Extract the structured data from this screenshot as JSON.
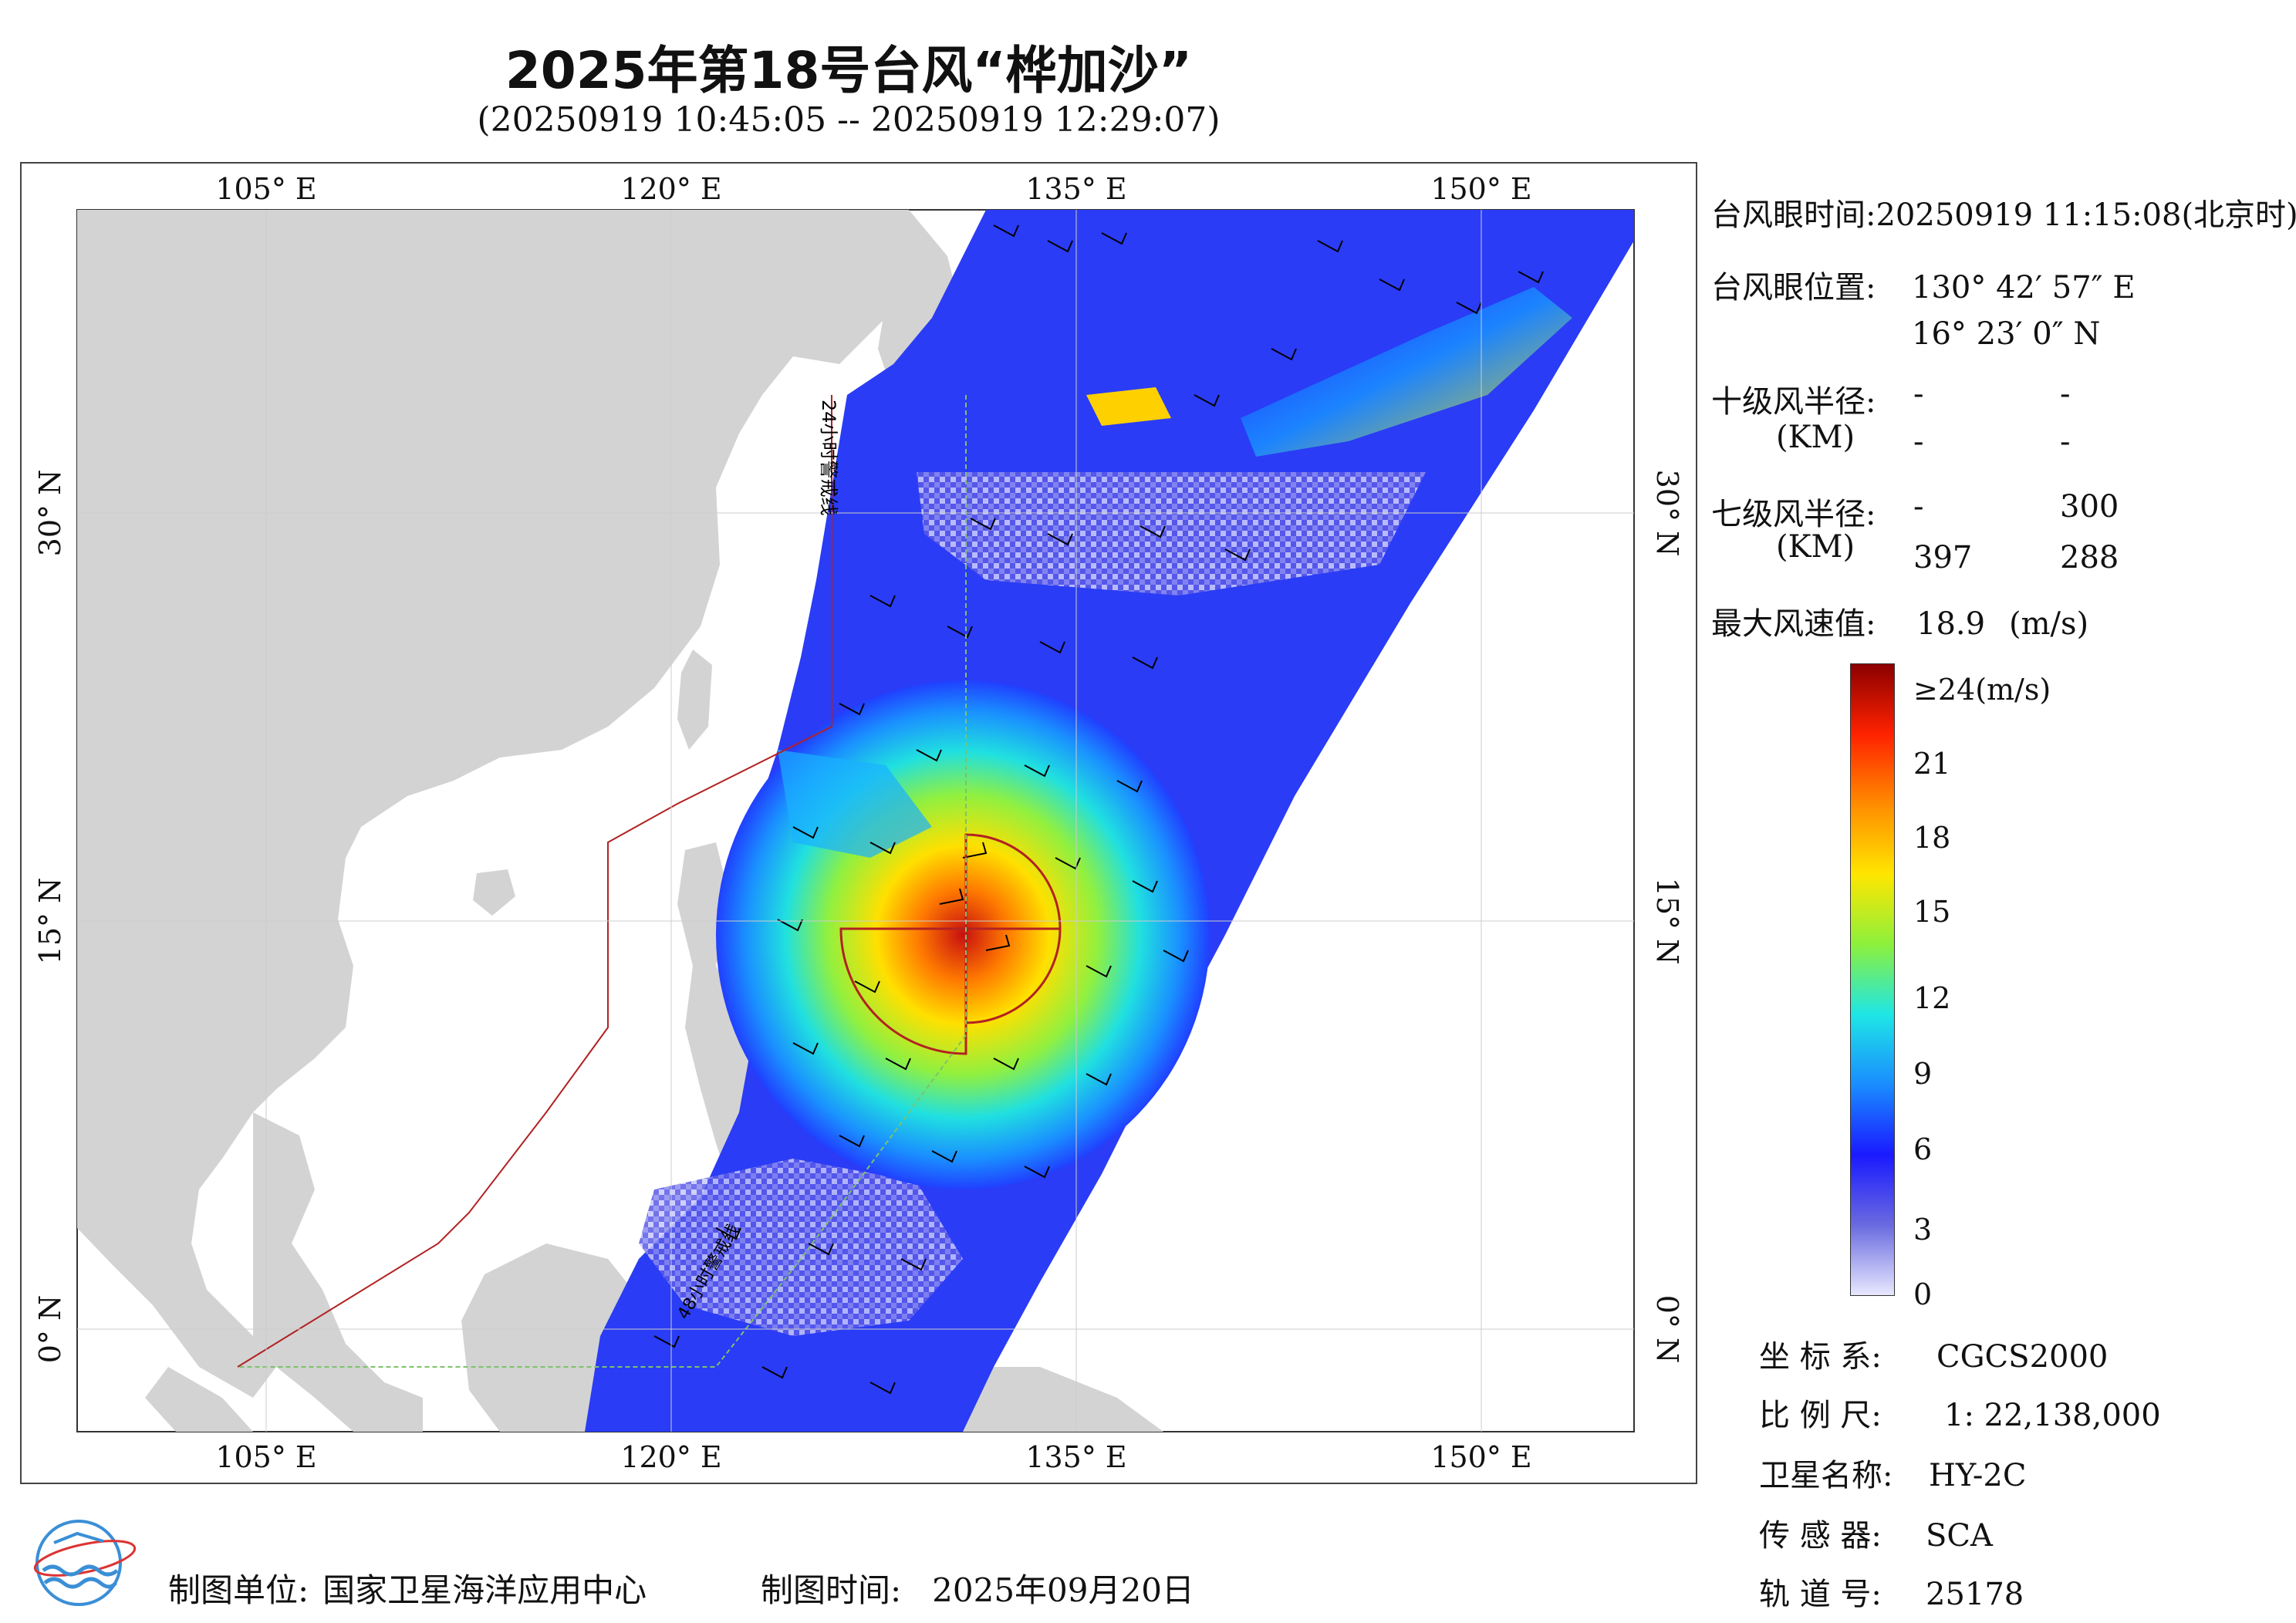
{
  "header": {
    "title": "2025年第18号台风“桦加沙”",
    "subtitle": "(20250919 10:45:05 -- 20250919 12:29:07)"
  },
  "map": {
    "lon_labels": [
      "105° E",
      "120° E",
      "135° E",
      "150° E"
    ],
    "lat_labels": [
      "30° N",
      "15° N",
      "0° N"
    ],
    "warning_line_24h": "24小时警戒线",
    "warning_line_48h": "48小时警戒线",
    "colors": {
      "land": "#d3d3d3",
      "sea": "#ffffff",
      "warning_24h": "#b22222",
      "warning_48h": "#7cc36a",
      "wind_radius": "#b22222"
    }
  },
  "info": {
    "eye_time_label": "台风眼时间:",
    "eye_time_value": "20250919 11:15:08(北京时)",
    "eye_pos_label": "台风眼位置:",
    "eye_lon": "130° 42′ 57″ E",
    "eye_lat": "16° 23′ 0″ N",
    "r10_label": "十级风半径:",
    "r10_unit": "(KM)",
    "r10_values": [
      "-",
      "-",
      "-",
      "-"
    ],
    "r7_label": "七级风半径:",
    "r7_unit": "(KM)",
    "r7_values": [
      "-",
      "300",
      "397",
      "288"
    ],
    "max_wind_label": "最大风速值:",
    "max_wind_value": "18.9",
    "max_wind_unit": "(m/s)"
  },
  "legend": {
    "title": "≥24(m/s)",
    "ticks": [
      "21",
      "18",
      "15",
      "12",
      "9",
      "6",
      "3",
      "0"
    ],
    "colors": [
      "#8b0000",
      "#ff2200",
      "#ff8c00",
      "#ffe600",
      "#8cf03c",
      "#1ee6e6",
      "#1a8cff",
      "#1a1aff",
      "#6a6ae0",
      "#e8e8ff"
    ]
  },
  "meta": {
    "crs_label": "坐 标 系:",
    "crs_value": "CGCS2000",
    "scale_label": "比 例 尺:",
    "scale_value": "1: 22,138,000",
    "satellite_label": "卫星名称:",
    "satellite_value": "HY-2C",
    "sensor_label": "传 感 器:",
    "sensor_value": "SCA",
    "orbit_label": "轨 道 号:",
    "orbit_value": "25178"
  },
  "footer": {
    "producer_label": "制图单位:",
    "producer_value": "国家卫星海洋应用中心",
    "date_label": "制图时间:",
    "date_value": "2025年09月20日"
  }
}
